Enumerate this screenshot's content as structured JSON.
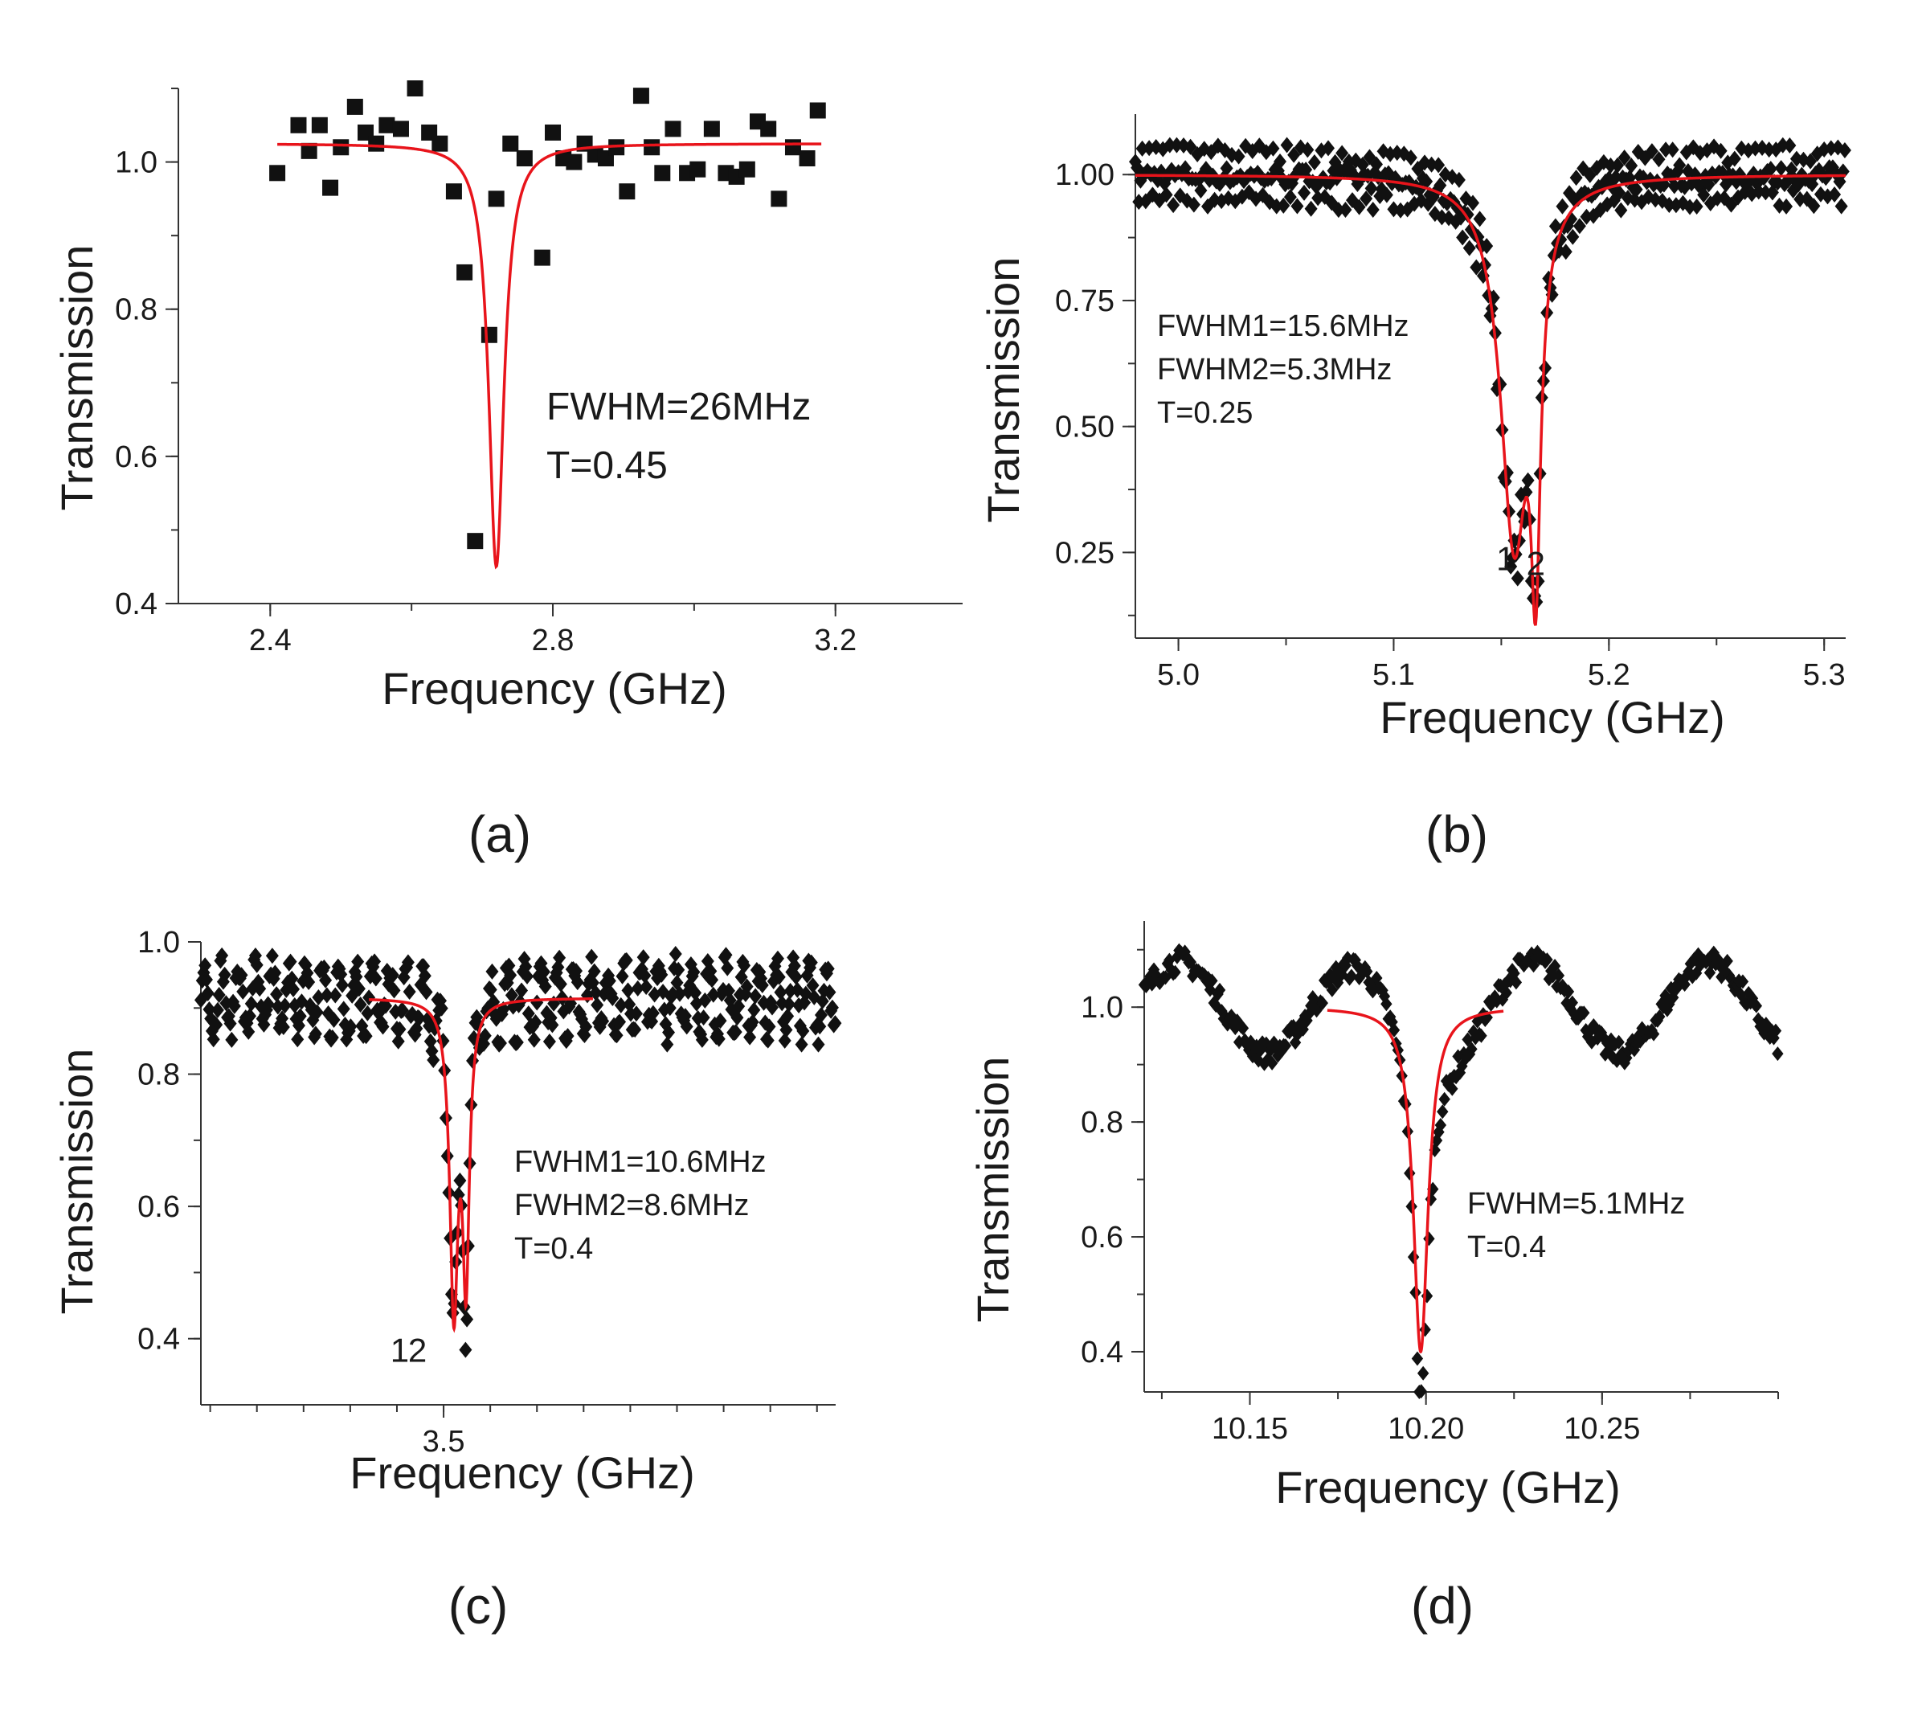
{
  "chart_data": [
    {
      "panel": "(a)",
      "type": "scatter",
      "xlabel": "Frequency (GHz)",
      "ylabel": "Transmission",
      "xlim": [
        2.27,
        3.38
      ],
      "ylim": [
        0.4,
        1.1
      ],
      "xticks": [
        "2.4",
        "2.8",
        "3.2"
      ],
      "xtick_values": [
        2.4,
        2.8,
        3.2
      ],
      "yticks": [
        "0.4",
        "0.6",
        "0.8",
        "1.0"
      ],
      "ytick_values": [
        0.4,
        0.6,
        0.8,
        1.0
      ],
      "marker": "square",
      "annotations": [
        "FWHM=26MHz",
        "T=0.45"
      ],
      "points": [
        [
          2.41,
          0.985
        ],
        [
          2.44,
          1.05
        ],
        [
          2.455,
          1.015
        ],
        [
          2.47,
          1.05
        ],
        [
          2.485,
          0.965
        ],
        [
          2.5,
          1.02
        ],
        [
          2.52,
          1.075
        ],
        [
          2.535,
          1.04
        ],
        [
          2.55,
          1.025
        ],
        [
          2.565,
          1.05
        ],
        [
          2.585,
          1.045
        ],
        [
          2.605,
          1.1
        ],
        [
          2.625,
          1.04
        ],
        [
          2.64,
          1.025
        ],
        [
          2.66,
          0.96
        ],
        [
          2.675,
          0.85
        ],
        [
          2.69,
          0.485
        ],
        [
          2.71,
          0.765
        ],
        [
          2.72,
          0.95
        ],
        [
          2.74,
          1.025
        ],
        [
          2.76,
          1.005
        ],
        [
          2.785,
          0.87
        ],
        [
          2.8,
          1.04
        ],
        [
          2.815,
          1.005
        ],
        [
          2.83,
          1.0
        ],
        [
          2.845,
          1.025
        ],
        [
          2.86,
          1.01
        ],
        [
          2.875,
          1.005
        ],
        [
          2.89,
          1.02
        ],
        [
          2.905,
          0.96
        ],
        [
          2.925,
          1.09
        ],
        [
          2.94,
          1.02
        ],
        [
          2.955,
          0.985
        ],
        [
          2.97,
          1.045
        ],
        [
          2.99,
          0.985
        ],
        [
          3.005,
          0.99
        ],
        [
          3.025,
          1.045
        ],
        [
          3.045,
          0.985
        ],
        [
          3.06,
          0.98
        ],
        [
          3.075,
          0.99
        ],
        [
          3.09,
          1.055
        ],
        [
          3.105,
          1.045
        ],
        [
          3.12,
          0.95
        ],
        [
          3.14,
          1.02
        ],
        [
          3.16,
          1.005
        ],
        [
          3.175,
          1.07
        ]
      ],
      "fit": {
        "color": "#e8141b",
        "x_range": [
          2.41,
          3.18
        ],
        "baseline": 1.025,
        "dips": [
          {
            "center": 2.72,
            "depth": 0.575,
            "fwhm": 0.026
          }
        ]
      }
    },
    {
      "panel": "(b)",
      "type": "scatter",
      "xlabel": "Frequency (GHz)",
      "ylabel": "Transmission",
      "xlim": [
        4.98,
        5.31
      ],
      "ylim": [
        0.08,
        1.12
      ],
      "xticks": [
        "5.0",
        "5.1",
        "5.2",
        "5.3"
      ],
      "xtick_values": [
        5.0,
        5.1,
        5.2,
        5.3
      ],
      "yticks": [
        "0.25",
        "0.50",
        "0.75",
        "1.00"
      ],
      "ytick_values": [
        0.25,
        0.5,
        0.75,
        1.0
      ],
      "marker": "diamond",
      "annotations": [
        "FWHM1=15.6MHz",
        "FWHM2=5.3MHz",
        "T=0.25"
      ],
      "peak_labels": [
        {
          "text": "1",
          "x": 5.152,
          "y": 0.215
        },
        {
          "text": "2",
          "x": 5.166,
          "y": 0.205
        }
      ],
      "fit": {
        "color": "#e8141b",
        "x_range": [
          4.98,
          5.31
        ],
        "baseline": 1.0,
        "dips": [
          {
            "center": 5.156,
            "depth": 0.72,
            "fwhm": 0.0156
          },
          {
            "center": 5.166,
            "depth": 0.62,
            "fwhm": 0.0053
          }
        ]
      },
      "noise": {
        "amplitude": 0.045,
        "period": 0.0032,
        "step": 0.0008
      }
    },
    {
      "panel": "(c)",
      "type": "scatter",
      "xlabel": "Frequency (GHz)",
      "ylabel": "Transmission",
      "xlim": [
        3.24,
        3.92
      ],
      "ylim": [
        0.3,
        1.0
      ],
      "xticks": [
        "3.5"
      ],
      "xtick_values": [
        3.5
      ],
      "yticks": [
        "0.4",
        "0.6",
        "0.8",
        "1.0"
      ],
      "ytick_values": [
        0.4,
        0.6,
        0.8,
        1.0
      ],
      "marker": "diamond",
      "annotations": [
        "FWHM1=10.6MHz",
        "FWHM2=8.6MHz",
        "T=0.4"
      ],
      "peak_labels": [
        {
          "text": "1",
          "x": 3.453,
          "y": 0.365
        },
        {
          "text": "2",
          "x": 3.472,
          "y": 0.365
        }
      ],
      "fit": {
        "color": "#e8141b",
        "x_range": [
          3.42,
          3.66
        ],
        "baseline": 0.915,
        "dips": [
          {
            "center": 3.511,
            "depth": 0.46,
            "fwhm": 0.0106
          },
          {
            "center": 3.524,
            "depth": 0.4,
            "fwhm": 0.0086
          }
        ]
      },
      "noise": {
        "amplitude": 0.05,
        "period": 0.018,
        "step": 0.0015
      }
    },
    {
      "panel": "(d)",
      "type": "scatter",
      "xlabel": "Frequency (GHz)",
      "ylabel": "Transmission",
      "xlim": [
        10.12,
        10.3
      ],
      "ylim": [
        0.33,
        1.15
      ],
      "xticks": [
        "10.15",
        "10.20",
        "10.25"
      ],
      "xtick_values": [
        10.15,
        10.2,
        10.25
      ],
      "yticks": [
        "0.4",
        "0.6",
        "0.8",
        "1.0"
      ],
      "ytick_values": [
        0.4,
        0.6,
        0.8,
        1.0
      ],
      "marker": "diamond",
      "annotations": [
        "FWHM=5.1MHz",
        "T=0.4"
      ],
      "fit": {
        "color": "#e8141b",
        "x_range": [
          10.172,
          10.222
        ],
        "baseline": 1.0,
        "dips": [
          {
            "center": 10.1985,
            "depth": 0.6,
            "fwhm": 0.0051
          }
        ]
      },
      "wave": {
        "amplitude": 0.08,
        "period": 0.05,
        "mean": 1.03,
        "phase": 10.13
      }
    }
  ],
  "panel_labels": [
    "(a)",
    "(b)",
    "(c)",
    "(d)"
  ]
}
